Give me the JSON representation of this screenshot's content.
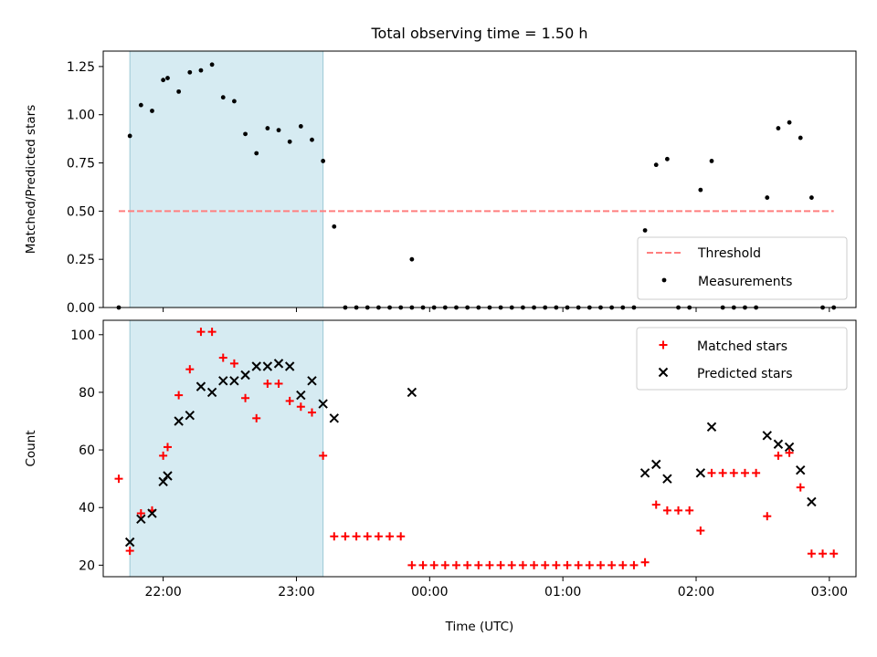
{
  "chart_data": [
    {
      "type": "scatter",
      "title": "Total observing time = 1.50 h",
      "xlabel": "",
      "ylabel": "Matched/Predicted stars",
      "xlim": [
        "21:33",
        "03:12"
      ],
      "ylim": [
        0,
        1.33
      ],
      "x_ticks": [
        "22:00",
        "23:00",
        "00:00",
        "01:00",
        "02:00",
        "03:00"
      ],
      "y_ticks": [
        0.0,
        0.25,
        0.5,
        0.75,
        1.0,
        1.25
      ],
      "y_tick_labels": [
        "0.00",
        "0.25",
        "0.50",
        "0.75",
        "1.00",
        "1.25"
      ],
      "shaded_region": {
        "from": "21:45",
        "to": "23:12",
        "color": "#add8e6"
      },
      "legend": {
        "placement": "lower-right",
        "entries": [
          "Threshold",
          "Measurements"
        ]
      },
      "threshold": {
        "name": "Threshold",
        "value": 0.5,
        "from": "21:40",
        "to": "03:02",
        "color": "#ff7f7f",
        "style": "dashed"
      },
      "series": [
        {
          "name": "Measurements",
          "color": "#000000",
          "marker": "dot",
          "points": [
            [
              "21:40",
              0.0
            ],
            [
              "21:45",
              0.89
            ],
            [
              "21:50",
              1.05
            ],
            [
              "21:55",
              1.02
            ],
            [
              "22:00",
              1.18
            ],
            [
              "22:02",
              1.19
            ],
            [
              "22:07",
              1.12
            ],
            [
              "22:12",
              1.22
            ],
            [
              "22:17",
              1.23
            ],
            [
              "22:22",
              1.26
            ],
            [
              "22:27",
              1.09
            ],
            [
              "22:32",
              1.07
            ],
            [
              "22:37",
              0.9
            ],
            [
              "22:42",
              0.8
            ],
            [
              "22:47",
              0.93
            ],
            [
              "22:52",
              0.92
            ],
            [
              "22:57",
              0.86
            ],
            [
              "23:02",
              0.94
            ],
            [
              "23:07",
              0.87
            ],
            [
              "23:12",
              0.76
            ],
            [
              "23:17",
              0.42
            ],
            [
              "23:22",
              0.0
            ],
            [
              "23:27",
              0.0
            ],
            [
              "23:32",
              0.0
            ],
            [
              "23:37",
              0.0
            ],
            [
              "23:42",
              0.0
            ],
            [
              "23:47",
              0.0
            ],
            [
              "23:52",
              0.0
            ],
            [
              "23:52",
              0.25
            ],
            [
              "23:57",
              0.0
            ],
            [
              "00:02",
              0.0
            ],
            [
              "00:07",
              0.0
            ],
            [
              "00:12",
              0.0
            ],
            [
              "00:17",
              0.0
            ],
            [
              "00:22",
              0.0
            ],
            [
              "00:27",
              0.0
            ],
            [
              "00:32",
              0.0
            ],
            [
              "00:37",
              0.0
            ],
            [
              "00:42",
              0.0
            ],
            [
              "00:47",
              0.0
            ],
            [
              "00:52",
              0.0
            ],
            [
              "00:57",
              0.0
            ],
            [
              "01:02",
              0.0
            ],
            [
              "01:07",
              0.0
            ],
            [
              "01:12",
              0.0
            ],
            [
              "01:17",
              0.0
            ],
            [
              "01:22",
              0.0
            ],
            [
              "01:27",
              0.0
            ],
            [
              "01:32",
              0.0
            ],
            [
              "01:37",
              0.4
            ],
            [
              "01:42",
              0.74
            ],
            [
              "01:47",
              0.77
            ],
            [
              "01:52",
              0.0
            ],
            [
              "01:57",
              0.0
            ],
            [
              "02:02",
              0.61
            ],
            [
              "02:07",
              0.76
            ],
            [
              "02:12",
              0.0
            ],
            [
              "02:17",
              0.0
            ],
            [
              "02:22",
              0.0
            ],
            [
              "02:27",
              0.0
            ],
            [
              "02:32",
              0.57
            ],
            [
              "02:37",
              0.93
            ],
            [
              "02:42",
              0.96
            ],
            [
              "02:47",
              0.88
            ],
            [
              "02:52",
              0.57
            ],
            [
              "02:57",
              0.0
            ],
            [
              "03:02",
              0.0
            ]
          ]
        }
      ]
    },
    {
      "type": "scatter",
      "title": "",
      "xlabel": "Time (UTC)",
      "ylabel": "Count",
      "xlim": [
        "21:33",
        "03:12"
      ],
      "ylim": [
        16,
        105
      ],
      "x_ticks": [
        "22:00",
        "23:00",
        "00:00",
        "01:00",
        "02:00",
        "03:00"
      ],
      "y_ticks": [
        20,
        40,
        60,
        80,
        100
      ],
      "y_tick_labels": [
        "20",
        "40",
        "60",
        "80",
        "100"
      ],
      "shaded_region": {
        "from": "21:45",
        "to": "23:12",
        "color": "#add8e6"
      },
      "legend": {
        "placement": "upper-right",
        "entries": [
          "Matched stars",
          "Predicted stars"
        ]
      },
      "series": [
        {
          "name": "Matched stars",
          "color": "#ff0000",
          "marker": "plus",
          "points": [
            [
              "21:40",
              50
            ],
            [
              "21:45",
              25
            ],
            [
              "21:50",
              38
            ],
            [
              "21:55",
              39
            ],
            [
              "22:00",
              58
            ],
            [
              "22:02",
              61
            ],
            [
              "22:07",
              79
            ],
            [
              "22:12",
              88
            ],
            [
              "22:17",
              101
            ],
            [
              "22:22",
              101
            ],
            [
              "22:27",
              92
            ],
            [
              "22:32",
              90
            ],
            [
              "22:37",
              78
            ],
            [
              "22:42",
              71
            ],
            [
              "22:47",
              83
            ],
            [
              "22:52",
              83
            ],
            [
              "22:57",
              77
            ],
            [
              "23:02",
              75
            ],
            [
              "23:07",
              73
            ],
            [
              "23:12",
              58
            ],
            [
              "23:17",
              30
            ],
            [
              "23:22",
              30
            ],
            [
              "23:27",
              30
            ],
            [
              "23:32",
              30
            ],
            [
              "23:37",
              30
            ],
            [
              "23:42",
              30
            ],
            [
              "23:47",
              30
            ],
            [
              "23:52",
              20
            ],
            [
              "23:57",
              20
            ],
            [
              "00:02",
              20
            ],
            [
              "00:07",
              20
            ],
            [
              "00:12",
              20
            ],
            [
              "00:17",
              20
            ],
            [
              "00:22",
              20
            ],
            [
              "00:27",
              20
            ],
            [
              "00:32",
              20
            ],
            [
              "00:37",
              20
            ],
            [
              "00:42",
              20
            ],
            [
              "00:47",
              20
            ],
            [
              "00:52",
              20
            ],
            [
              "00:57",
              20
            ],
            [
              "01:02",
              20
            ],
            [
              "01:07",
              20
            ],
            [
              "01:12",
              20
            ],
            [
              "01:17",
              20
            ],
            [
              "01:22",
              20
            ],
            [
              "01:27",
              20
            ],
            [
              "01:32",
              20
            ],
            [
              "01:37",
              21
            ],
            [
              "01:42",
              41
            ],
            [
              "01:47",
              39
            ],
            [
              "01:52",
              39
            ],
            [
              "01:57",
              39
            ],
            [
              "02:02",
              32
            ],
            [
              "02:07",
              52
            ],
            [
              "02:12",
              52
            ],
            [
              "02:17",
              52
            ],
            [
              "02:22",
              52
            ],
            [
              "02:27",
              52
            ],
            [
              "02:32",
              37
            ],
            [
              "02:37",
              58
            ],
            [
              "02:42",
              59
            ],
            [
              "02:47",
              47
            ],
            [
              "02:52",
              24
            ],
            [
              "02:57",
              24
            ],
            [
              "03:02",
              24
            ]
          ]
        },
        {
          "name": "Predicted stars",
          "color": "#000000",
          "marker": "x",
          "points": [
            [
              "21:45",
              28
            ],
            [
              "21:50",
              36
            ],
            [
              "21:55",
              38
            ],
            [
              "22:00",
              49
            ],
            [
              "22:02",
              51
            ],
            [
              "22:07",
              70
            ],
            [
              "22:12",
              72
            ],
            [
              "22:17",
              82
            ],
            [
              "22:22",
              80
            ],
            [
              "22:27",
              84
            ],
            [
              "22:32",
              84
            ],
            [
              "22:37",
              86
            ],
            [
              "22:42",
              89
            ],
            [
              "22:47",
              89
            ],
            [
              "22:52",
              90
            ],
            [
              "22:57",
              89
            ],
            [
              "23:02",
              79
            ],
            [
              "23:07",
              84
            ],
            [
              "23:12",
              76
            ],
            [
              "23:17",
              71
            ],
            [
              "23:52",
              80
            ],
            [
              "01:37",
              52
            ],
            [
              "01:42",
              55
            ],
            [
              "01:47",
              50
            ],
            [
              "02:02",
              52
            ],
            [
              "02:07",
              68
            ],
            [
              "02:32",
              65
            ],
            [
              "02:37",
              62
            ],
            [
              "02:42",
              61
            ],
            [
              "02:47",
              53
            ],
            [
              "02:52",
              42
            ]
          ]
        }
      ]
    }
  ]
}
